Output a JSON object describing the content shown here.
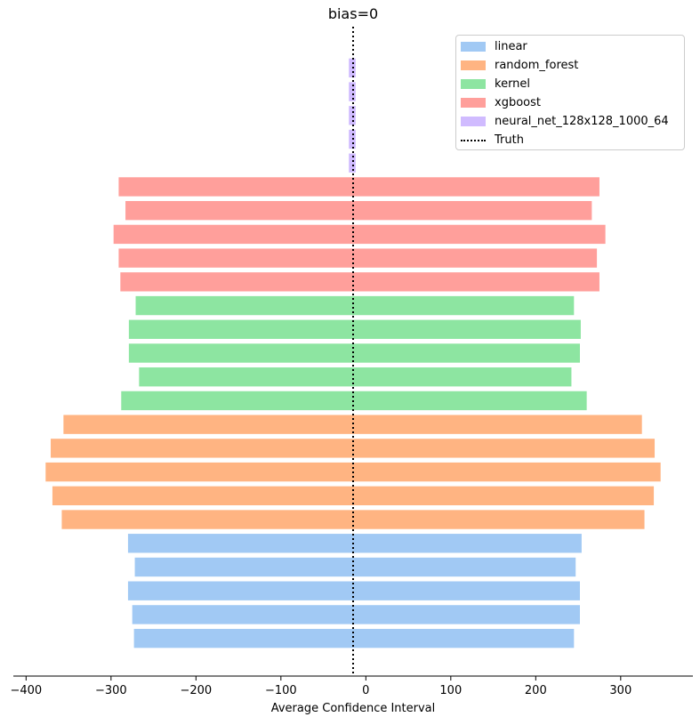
{
  "chart_data": {
    "type": "bar",
    "orientation": "horizontal",
    "title": "bias=0",
    "xlabel": "Average Confidence Interval",
    "ylabel": "",
    "xlim": [
      -415,
      385
    ],
    "xticks": [
      -400,
      -300,
      -200,
      -100,
      0,
      100,
      200,
      300
    ],
    "xtick_labels": [
      "−400",
      "−300",
      "−200",
      "−100",
      "0",
      "100",
      "200",
      "300"
    ],
    "truth": -15,
    "truth_label": "Truth",
    "grid": false,
    "legend_position": "upper right",
    "series": [
      {
        "name": "linear",
        "color": "#a1c9f4",
        "lower": [
          -273,
          -275,
          -280,
          -272,
          -280
        ],
        "upper": [
          245,
          252,
          252,
          247,
          254
        ]
      },
      {
        "name": "random_forest",
        "color": "#ffb482",
        "lower": [
          -358,
          -369,
          -377,
          -371,
          -356
        ],
        "upper": [
          328,
          339,
          347,
          340,
          325
        ]
      },
      {
        "name": "kernel",
        "color": "#8de5a1",
        "lower": [
          -288,
          -267,
          -279,
          -279,
          -271
        ],
        "upper": [
          260,
          242,
          252,
          253,
          245
        ]
      },
      {
        "name": "xgboost",
        "color": "#ff9f9b",
        "lower": [
          -289,
          -291,
          -297,
          -283,
          -291
        ],
        "upper": [
          275,
          272,
          282,
          266,
          275
        ]
      },
      {
        "name": "neural_net_128x128_1000_64",
        "color": "#d0bbff",
        "lower": [
          -20,
          -20,
          -20,
          -20,
          -20
        ],
        "upper": [
          -12,
          -12,
          -12,
          -12,
          -12
        ]
      }
    ]
  }
}
